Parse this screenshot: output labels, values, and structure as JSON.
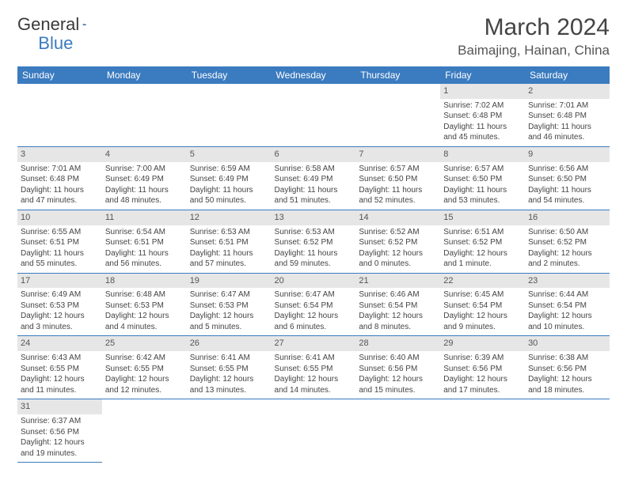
{
  "logo": {
    "part1": "General",
    "part2": "Blue"
  },
  "title": "March 2024",
  "location": "Baimajing, Hainan, China",
  "colors": {
    "header_bg": "#3b7bbf",
    "header_text": "#ffffff",
    "daynum_bg": "#e6e6e6",
    "cell_border": "#3b7bbf",
    "body_text": "#444444"
  },
  "day_headers": [
    "Sunday",
    "Monday",
    "Tuesday",
    "Wednesday",
    "Thursday",
    "Friday",
    "Saturday"
  ],
  "weeks": [
    [
      null,
      null,
      null,
      null,
      null,
      {
        "n": "1",
        "sr": "Sunrise: 7:02 AM",
        "ss": "Sunset: 6:48 PM",
        "d1": "Daylight: 11 hours",
        "d2": "and 45 minutes."
      },
      {
        "n": "2",
        "sr": "Sunrise: 7:01 AM",
        "ss": "Sunset: 6:48 PM",
        "d1": "Daylight: 11 hours",
        "d2": "and 46 minutes."
      }
    ],
    [
      {
        "n": "3",
        "sr": "Sunrise: 7:01 AM",
        "ss": "Sunset: 6:48 PM",
        "d1": "Daylight: 11 hours",
        "d2": "and 47 minutes."
      },
      {
        "n": "4",
        "sr": "Sunrise: 7:00 AM",
        "ss": "Sunset: 6:49 PM",
        "d1": "Daylight: 11 hours",
        "d2": "and 48 minutes."
      },
      {
        "n": "5",
        "sr": "Sunrise: 6:59 AM",
        "ss": "Sunset: 6:49 PM",
        "d1": "Daylight: 11 hours",
        "d2": "and 50 minutes."
      },
      {
        "n": "6",
        "sr": "Sunrise: 6:58 AM",
        "ss": "Sunset: 6:49 PM",
        "d1": "Daylight: 11 hours",
        "d2": "and 51 minutes."
      },
      {
        "n": "7",
        "sr": "Sunrise: 6:57 AM",
        "ss": "Sunset: 6:50 PM",
        "d1": "Daylight: 11 hours",
        "d2": "and 52 minutes."
      },
      {
        "n": "8",
        "sr": "Sunrise: 6:57 AM",
        "ss": "Sunset: 6:50 PM",
        "d1": "Daylight: 11 hours",
        "d2": "and 53 minutes."
      },
      {
        "n": "9",
        "sr": "Sunrise: 6:56 AM",
        "ss": "Sunset: 6:50 PM",
        "d1": "Daylight: 11 hours",
        "d2": "and 54 minutes."
      }
    ],
    [
      {
        "n": "10",
        "sr": "Sunrise: 6:55 AM",
        "ss": "Sunset: 6:51 PM",
        "d1": "Daylight: 11 hours",
        "d2": "and 55 minutes."
      },
      {
        "n": "11",
        "sr": "Sunrise: 6:54 AM",
        "ss": "Sunset: 6:51 PM",
        "d1": "Daylight: 11 hours",
        "d2": "and 56 minutes."
      },
      {
        "n": "12",
        "sr": "Sunrise: 6:53 AM",
        "ss": "Sunset: 6:51 PM",
        "d1": "Daylight: 11 hours",
        "d2": "and 57 minutes."
      },
      {
        "n": "13",
        "sr": "Sunrise: 6:53 AM",
        "ss": "Sunset: 6:52 PM",
        "d1": "Daylight: 11 hours",
        "d2": "and 59 minutes."
      },
      {
        "n": "14",
        "sr": "Sunrise: 6:52 AM",
        "ss": "Sunset: 6:52 PM",
        "d1": "Daylight: 12 hours",
        "d2": "and 0 minutes."
      },
      {
        "n": "15",
        "sr": "Sunrise: 6:51 AM",
        "ss": "Sunset: 6:52 PM",
        "d1": "Daylight: 12 hours",
        "d2": "and 1 minute."
      },
      {
        "n": "16",
        "sr": "Sunrise: 6:50 AM",
        "ss": "Sunset: 6:52 PM",
        "d1": "Daylight: 12 hours",
        "d2": "and 2 minutes."
      }
    ],
    [
      {
        "n": "17",
        "sr": "Sunrise: 6:49 AM",
        "ss": "Sunset: 6:53 PM",
        "d1": "Daylight: 12 hours",
        "d2": "and 3 minutes."
      },
      {
        "n": "18",
        "sr": "Sunrise: 6:48 AM",
        "ss": "Sunset: 6:53 PM",
        "d1": "Daylight: 12 hours",
        "d2": "and 4 minutes."
      },
      {
        "n": "19",
        "sr": "Sunrise: 6:47 AM",
        "ss": "Sunset: 6:53 PM",
        "d1": "Daylight: 12 hours",
        "d2": "and 5 minutes."
      },
      {
        "n": "20",
        "sr": "Sunrise: 6:47 AM",
        "ss": "Sunset: 6:54 PM",
        "d1": "Daylight: 12 hours",
        "d2": "and 6 minutes."
      },
      {
        "n": "21",
        "sr": "Sunrise: 6:46 AM",
        "ss": "Sunset: 6:54 PM",
        "d1": "Daylight: 12 hours",
        "d2": "and 8 minutes."
      },
      {
        "n": "22",
        "sr": "Sunrise: 6:45 AM",
        "ss": "Sunset: 6:54 PM",
        "d1": "Daylight: 12 hours",
        "d2": "and 9 minutes."
      },
      {
        "n": "23",
        "sr": "Sunrise: 6:44 AM",
        "ss": "Sunset: 6:54 PM",
        "d1": "Daylight: 12 hours",
        "d2": "and 10 minutes."
      }
    ],
    [
      {
        "n": "24",
        "sr": "Sunrise: 6:43 AM",
        "ss": "Sunset: 6:55 PM",
        "d1": "Daylight: 12 hours",
        "d2": "and 11 minutes."
      },
      {
        "n": "25",
        "sr": "Sunrise: 6:42 AM",
        "ss": "Sunset: 6:55 PM",
        "d1": "Daylight: 12 hours",
        "d2": "and 12 minutes."
      },
      {
        "n": "26",
        "sr": "Sunrise: 6:41 AM",
        "ss": "Sunset: 6:55 PM",
        "d1": "Daylight: 12 hours",
        "d2": "and 13 minutes."
      },
      {
        "n": "27",
        "sr": "Sunrise: 6:41 AM",
        "ss": "Sunset: 6:55 PM",
        "d1": "Daylight: 12 hours",
        "d2": "and 14 minutes."
      },
      {
        "n": "28",
        "sr": "Sunrise: 6:40 AM",
        "ss": "Sunset: 6:56 PM",
        "d1": "Daylight: 12 hours",
        "d2": "and 15 minutes."
      },
      {
        "n": "29",
        "sr": "Sunrise: 6:39 AM",
        "ss": "Sunset: 6:56 PM",
        "d1": "Daylight: 12 hours",
        "d2": "and 17 minutes."
      },
      {
        "n": "30",
        "sr": "Sunrise: 6:38 AM",
        "ss": "Sunset: 6:56 PM",
        "d1": "Daylight: 12 hours",
        "d2": "and 18 minutes."
      }
    ],
    [
      {
        "n": "31",
        "sr": "Sunrise: 6:37 AM",
        "ss": "Sunset: 6:56 PM",
        "d1": "Daylight: 12 hours",
        "d2": "and 19 minutes."
      },
      null,
      null,
      null,
      null,
      null,
      null
    ]
  ]
}
